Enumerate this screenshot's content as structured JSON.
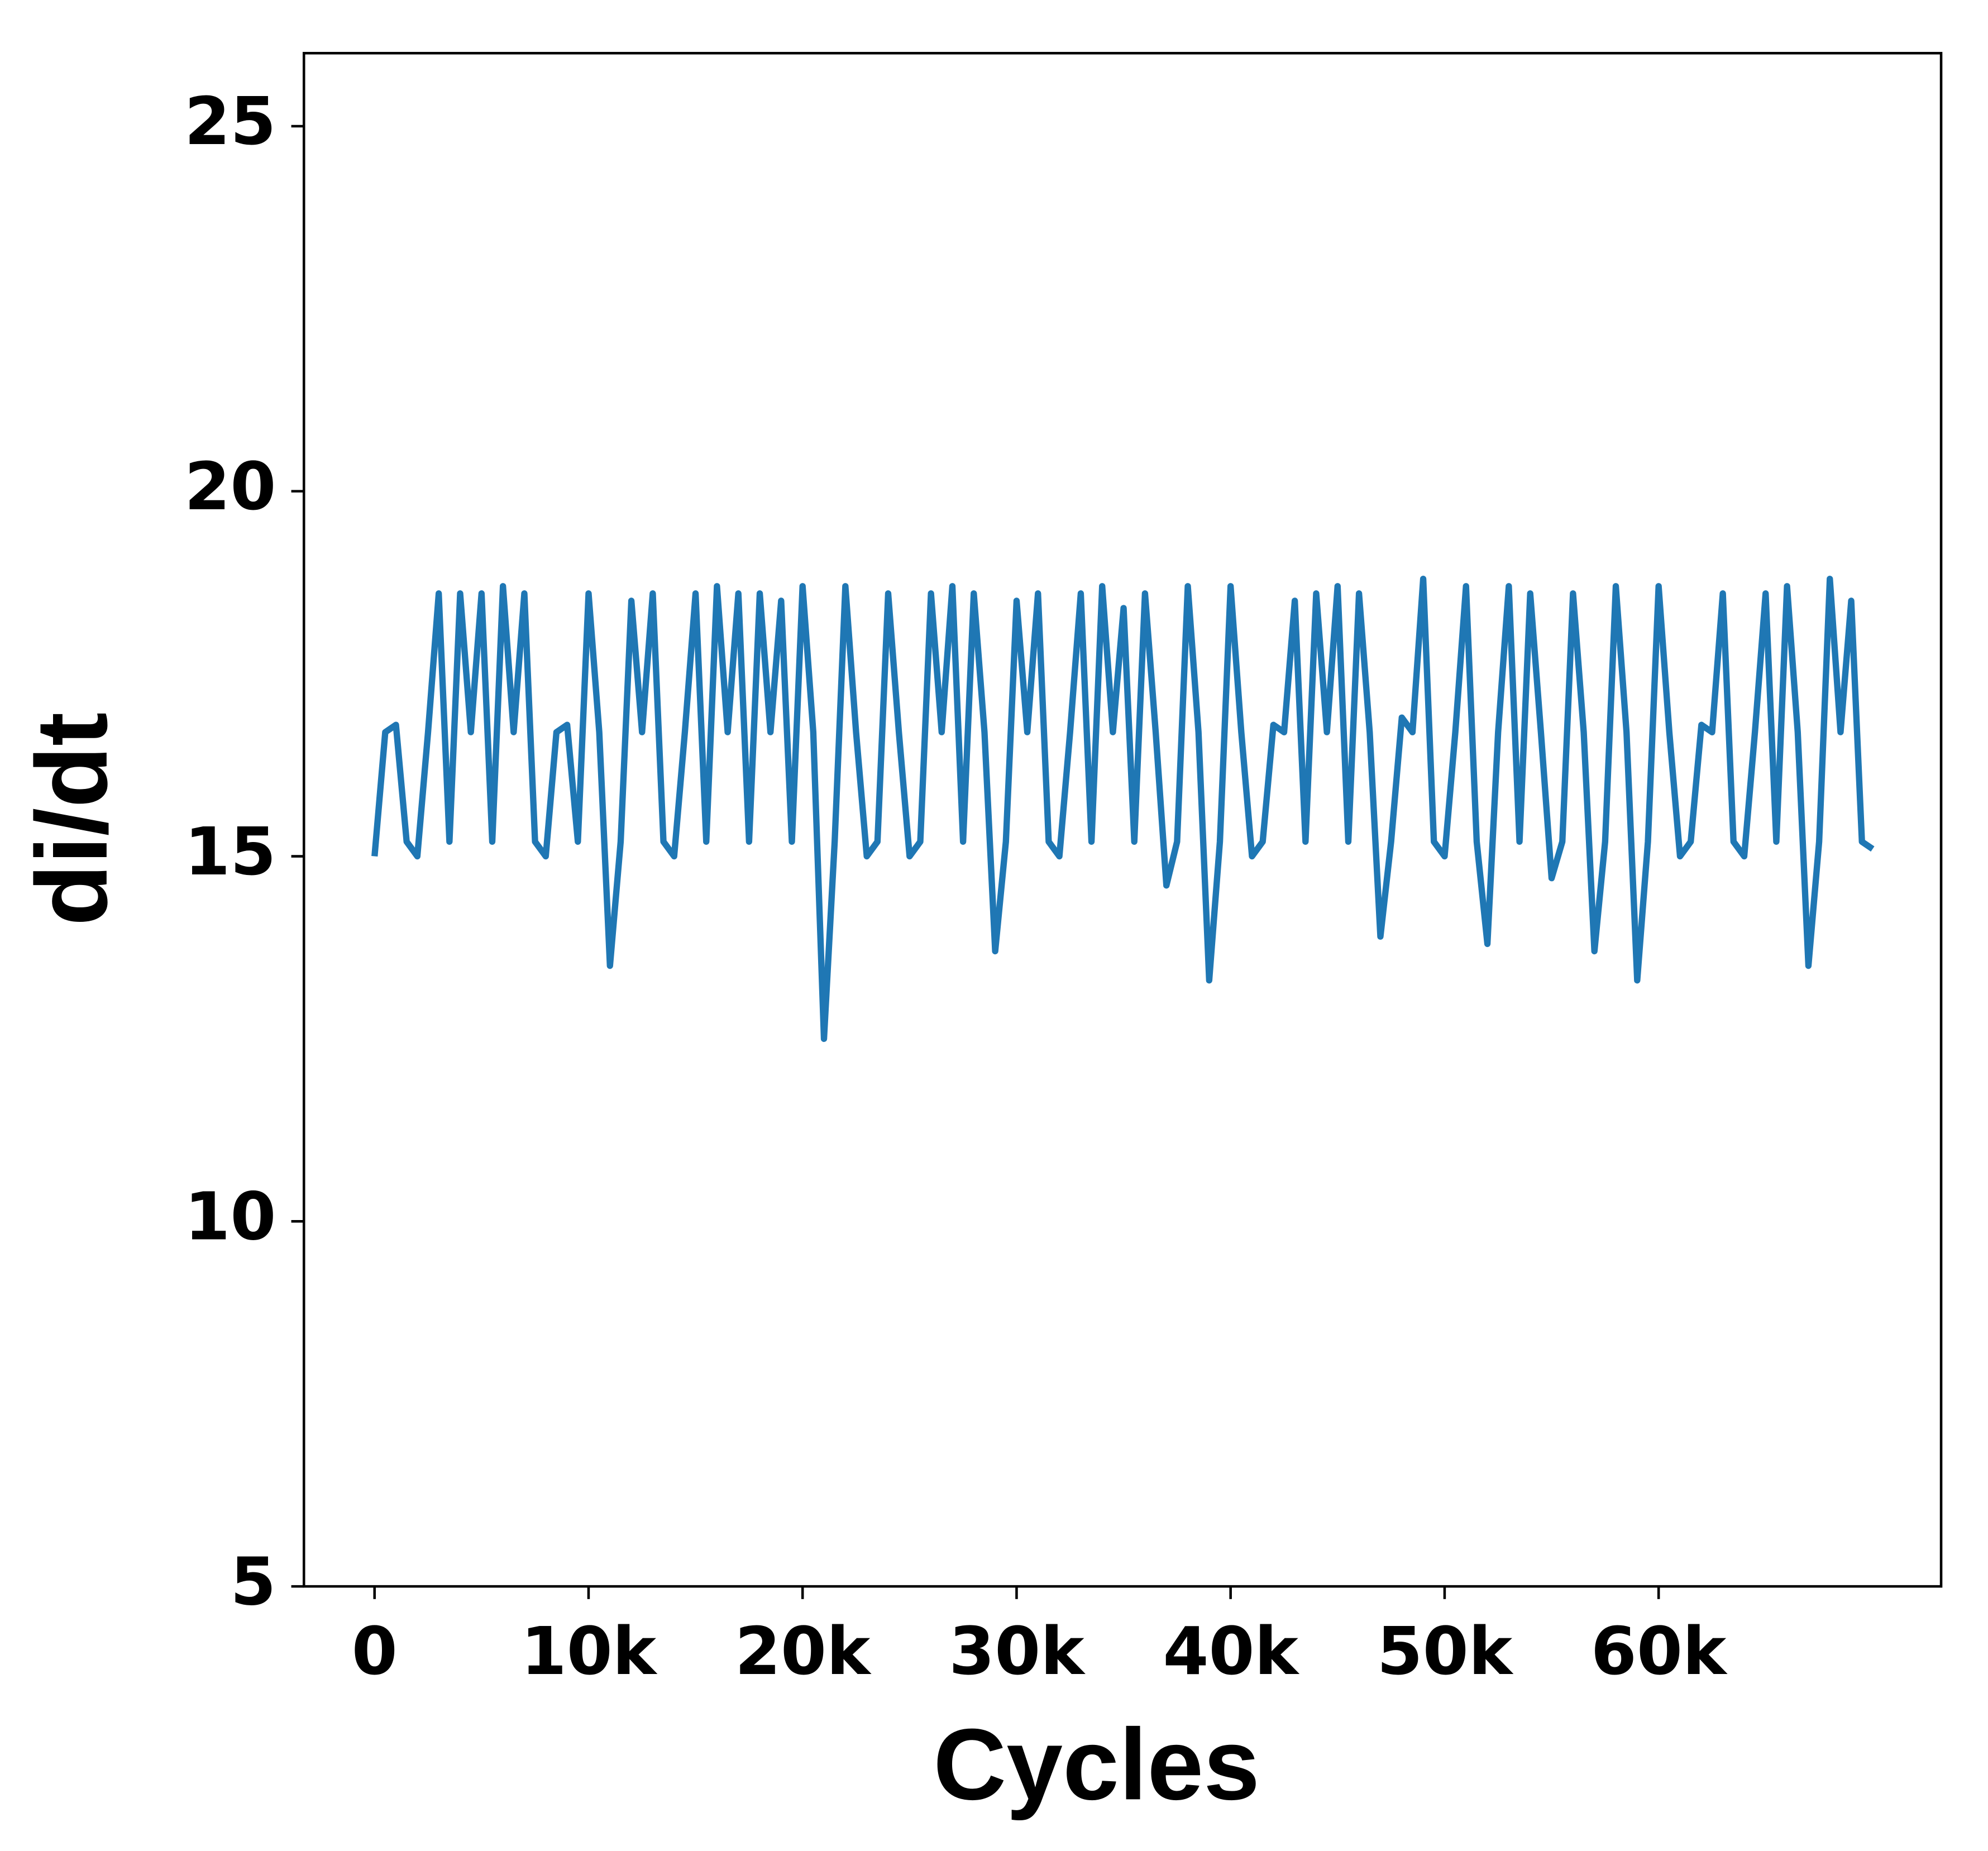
{
  "chart_data": {
    "type": "line",
    "xlabel": "Cycles",
    "ylabel": "di/dt",
    "x": [
      0,
      500,
      1000,
      1500,
      2000,
      2500,
      3000,
      3500,
      4000,
      4500,
      5000,
      5500,
      6000,
      6500,
      7000,
      7500,
      8000,
      8500,
      9000,
      9500,
      10000,
      10500,
      11000,
      11500,
      12000,
      12500,
      13000,
      13500,
      14000,
      14500,
      15000,
      15500,
      16000,
      16500,
      17000,
      17500,
      18000,
      18500,
      19000,
      19500,
      20000,
      20500,
      21000,
      21500,
      22000,
      22500,
      23000,
      23500,
      24000,
      24500,
      25000,
      25500,
      26000,
      26500,
      27000,
      27500,
      28000,
      28500,
      29000,
      29500,
      30000,
      30500,
      31000,
      31500,
      32000,
      32500,
      33000,
      33500,
      34000,
      34500,
      35000,
      35500,
      36000,
      36500,
      37000,
      37500,
      38000,
      38500,
      39000,
      39500,
      40000,
      40500,
      41000,
      41500,
      42000,
      42500,
      43000,
      43500,
      44000,
      44500,
      45000,
      45500,
      46000,
      46500,
      47000,
      47500,
      48000,
      48500,
      49000,
      49500,
      50000,
      50500,
      51000,
      51500,
      52000,
      52500,
      53000,
      53500,
      54000,
      54500,
      55000,
      55500,
      56000,
      56500,
      57000,
      57500,
      58000,
      58500,
      59000,
      59500,
      60000,
      60500,
      61000,
      61500,
      62000,
      62500,
      63000,
      63500,
      64000,
      64500,
      65000,
      65500,
      66000,
      66500,
      67000,
      67500,
      68000,
      68500,
      69000,
      69500,
      70000
    ],
    "series": [
      {
        "color": "#1f77b4",
        "values": [
          15.0,
          16.7,
          16.8,
          15.2,
          15.0,
          16.7,
          18.6,
          15.2,
          18.6,
          16.7,
          18.6,
          15.2,
          18.7,
          16.7,
          18.6,
          15.2,
          15.0,
          16.7,
          16.8,
          15.2,
          18.6,
          16.7,
          13.5,
          15.2,
          18.5,
          16.7,
          18.6,
          15.2,
          15.0,
          16.7,
          18.6,
          15.2,
          18.7,
          16.7,
          18.6,
          15.2,
          18.6,
          16.7,
          18.5,
          15.2,
          18.7,
          16.7,
          12.5,
          15.2,
          18.7,
          16.7,
          15.0,
          15.2,
          18.6,
          16.7,
          15.0,
          15.2,
          18.6,
          16.7,
          18.7,
          15.2,
          18.6,
          16.7,
          13.7,
          15.2,
          18.5,
          16.7,
          18.6,
          15.2,
          15.0,
          16.7,
          18.6,
          15.2,
          18.7,
          16.7,
          18.4,
          15.2,
          18.6,
          16.7,
          14.6,
          15.2,
          18.7,
          16.7,
          13.3,
          15.2,
          18.7,
          16.7,
          15.0,
          15.2,
          16.8,
          16.7,
          18.5,
          15.2,
          18.6,
          16.7,
          18.7,
          15.2,
          18.6,
          16.7,
          13.9,
          15.2,
          16.9,
          16.7,
          18.8,
          15.2,
          15.0,
          16.7,
          18.7,
          15.2,
          13.8,
          16.7,
          18.7,
          15.2,
          18.6,
          16.7,
          14.7,
          15.2,
          18.6,
          16.7,
          13.7,
          15.2,
          18.7,
          16.7,
          13.3,
          15.2,
          18.7,
          16.7,
          15.0,
          15.2,
          16.8,
          16.7,
          18.6,
          15.2,
          15.0,
          16.7,
          18.6,
          15.2,
          18.7,
          16.7,
          13.5,
          15.2,
          18.8,
          16.7,
          18.5,
          15.2,
          15.1
        ]
      }
    ],
    "xlim": [
      -3300,
      73200
    ],
    "xticks": [
      0,
      {
        "value": 10000,
        "label": "10k"
      },
      {
        "value": 20000,
        "label": "20k"
      },
      {
        "value": 30000,
        "label": "30k"
      },
      {
        "value": 40000,
        "label": "40k"
      },
      {
        "value": 50000,
        "label": "50k"
      },
      {
        "value": 60000,
        "label": "60k"
      }
    ],
    "ylim": [
      5,
      26
    ],
    "yticks": [
      5,
      10,
      15,
      20,
      25
    ],
    "grid": false
  }
}
